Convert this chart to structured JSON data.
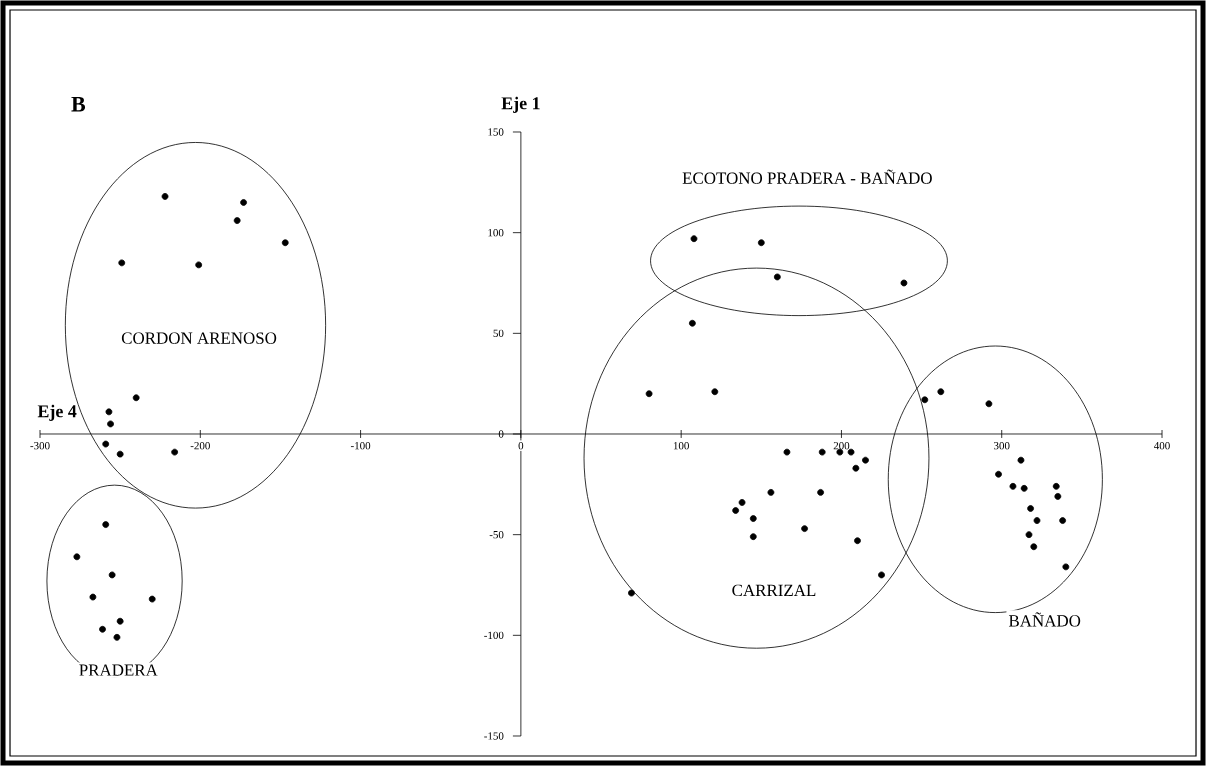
{
  "chart_data": {
    "type": "scatter",
    "title": "B",
    "xlabel": "Eje 4",
    "ylabel": "Eje 1",
    "xlim": [
      -300,
      400
    ],
    "ylim": [
      -150,
      150
    ],
    "xticks": [
      -300,
      -200,
      -100,
      0,
      100,
      200,
      300,
      400
    ],
    "yticks": [
      -150,
      -100,
      -50,
      0,
      50,
      100,
      150
    ],
    "series": [
      {
        "color": "#000000",
        "x": [
          -222,
          -173,
          -177,
          -147,
          -249,
          -201,
          -240,
          -257,
          -256,
          -259,
          -250,
          -216
        ],
        "values": [
          118,
          115,
          106,
          95,
          85,
          84,
          18,
          11,
          5,
          -5,
          -10,
          -9
        ]
      },
      {
        "color": "#000000",
        "x": [
          -259,
          -277,
          -255,
          -267,
          -230,
          -250,
          -261,
          -252
        ],
        "values": [
          -45,
          -61,
          -70,
          -81,
          -82,
          -93,
          -97,
          -101
        ]
      },
      {
        "color": "#000000",
        "x": [
          108,
          150,
          160,
          239
        ],
        "values": [
          97,
          95,
          78,
          75
        ]
      },
      {
        "color": "#000000",
        "x": [
          107,
          80,
          121,
          166,
          188,
          199,
          206,
          209,
          215,
          156,
          187,
          138,
          134,
          145,
          145,
          177,
          210,
          225,
          69
        ],
        "values": [
          55,
          20,
          21,
          -9,
          -9,
          -9,
          -9,
          -17,
          -13,
          -29,
          -29,
          -34,
          -38,
          -42,
          -51,
          -47,
          -53,
          -70,
          -79
        ]
      },
      {
        "color": "#000000",
        "x": [
          252,
          262,
          292,
          312,
          298,
          307,
          314,
          334,
          335,
          318,
          322,
          338,
          317,
          320,
          340
        ],
        "values": [
          17,
          21,
          15,
          -13,
          -20,
          -26,
          -27,
          -26,
          -31,
          -37,
          -43,
          -43,
          -50,
          -56,
          -66
        ]
      }
    ],
    "annotations": [
      "CORDON ARENOSO",
      "PRADERA",
      "ECOTONO PRADERA - BAÑADO",
      "CARRIZAL",
      "BAÑADO"
    ]
  }
}
